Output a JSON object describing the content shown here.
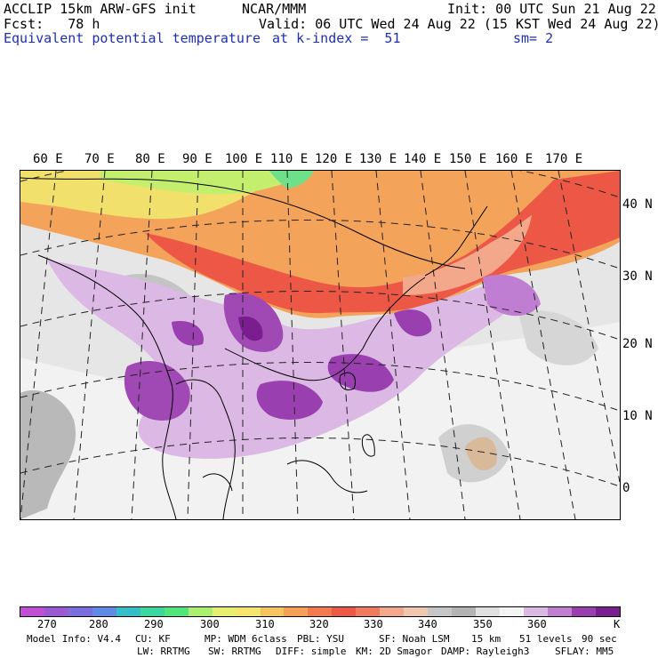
{
  "header": {
    "model": "ACCLIP 15km ARW-GFS init",
    "center": "NCAR/MMM",
    "init": "Init: 00 UTC Sun 21 Aug 22",
    "fcst": "Fcst:   78 h",
    "valid": "Valid: 06 UTC Wed 24 Aug 22 (15 KST Wed 24 Aug 22)",
    "field": "Equivalent potential temperature",
    "level": "at k-index =  51",
    "smooth": "sm= 2"
  },
  "longitudes": [
    "60 E",
    "70 E",
    "80 E",
    "90 E",
    "100 E",
    "110 E",
    "120 E",
    "130 E",
    "140 E",
    "150 E",
    "160 E",
    "170 E"
  ],
  "latitudes": [
    "40 N",
    "30 N",
    "20 N",
    "10 N",
    "0"
  ],
  "colorbar": {
    "colors": [
      "#c04fd6",
      "#9b59d6",
      "#7a6fe0",
      "#5f8be5",
      "#33c0c8",
      "#3ad9a0",
      "#4fe67a",
      "#a8f06e",
      "#e7f06e",
      "#f5e56c",
      "#f5c45f",
      "#f5a055",
      "#f27a4b",
      "#ec5a45",
      "#f07a5c",
      "#f3a88b",
      "#f0c8b0",
      "#c6c6c6",
      "#b4b4b4",
      "#e0e0e0",
      "#f4f4f4",
      "#dcb8e4",
      "#c07ed2",
      "#9a3fb0",
      "#7a1e8f"
    ],
    "labels": [
      "270",
      "280",
      "290",
      "300",
      "310",
      "320",
      "330",
      "340",
      "350",
      "360"
    ],
    "unit": "K"
  },
  "footer": {
    "line1": [
      "Model Info: V4.4",
      "CU: KF",
      "MP: WDM 6class",
      "PBL: YSU",
      "SF: Noah LSM",
      "15 km",
      "51 levels",
      "90 sec"
    ],
    "line2": [
      "LW: RRTMG",
      "SW: RRTMG",
      "DIFF: simple",
      "KM: 2D Smagor",
      "DAMP: Rayleigh3",
      "SFLAY: MM5"
    ]
  }
}
